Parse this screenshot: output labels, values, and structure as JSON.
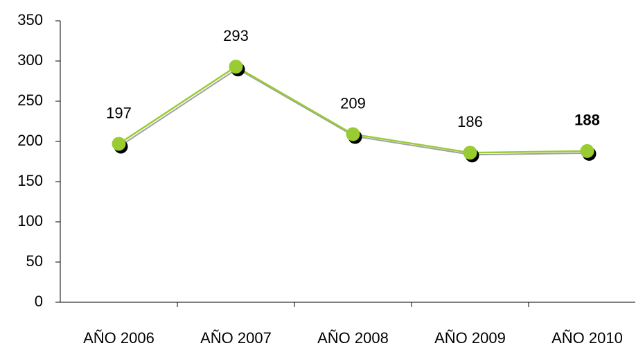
{
  "chart_data": {
    "type": "line",
    "categories": [
      "AÑO 2006",
      "AÑO 2007",
      "AÑO 2008",
      "AÑO 2009",
      "AÑO 2010"
    ],
    "values": [
      197,
      293,
      209,
      186,
      188
    ],
    "color": "#99cc33",
    "ylim": [
      0,
      350
    ],
    "yticks": [
      0,
      50,
      100,
      150,
      200,
      250,
      300,
      350
    ]
  }
}
